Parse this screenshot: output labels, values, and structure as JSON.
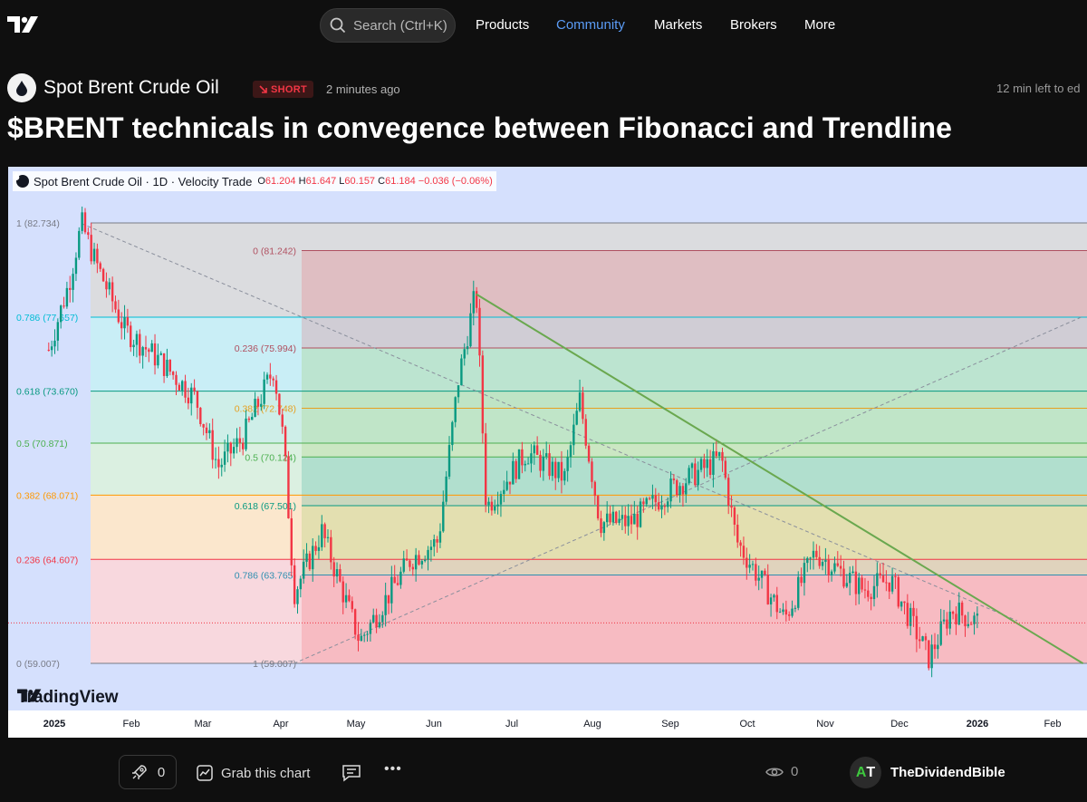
{
  "header": {
    "search_placeholder": "Search (Ctrl+K)",
    "nav": [
      "Products",
      "Community",
      "Markets",
      "Brokers",
      "More"
    ],
    "active_nav": "Community"
  },
  "idea": {
    "symbol_name": "Spot Brent Crude Oil",
    "direction": "SHORT",
    "posted": "2 minutes ago",
    "edit_notice": "12 min left to ed",
    "title": "$BRENT technicals in convegence between Fibonacci and Trendline"
  },
  "chart": {
    "legend_title": "Spot Brent Crude Oil · 1D · Velocity Trade",
    "ohlc": {
      "o_label": "O",
      "o": "61.204",
      "h_label": "H",
      "h": "61.647",
      "l_label": "L",
      "l": "60.157",
      "c_label": "C",
      "c": "61.184",
      "change": "−0.036 (−0.06%)"
    },
    "brand": "TradingView",
    "x_ticks": [
      "2025",
      "Feb",
      "Mar",
      "Apr",
      "May",
      "Jun",
      "Jul",
      "Aug",
      "Sep",
      "Oct",
      "Nov",
      "Dec",
      "2026",
      "Feb"
    ],
    "colors": {
      "up": "#089981",
      "down": "#f23645",
      "trendline": "#6aa84f",
      "fib_618": "#089981"
    }
  },
  "chart_data": {
    "type": "candlestick",
    "title": "Spot Brent Crude Oil · 1D · Velocity Trade",
    "x_range": [
      "2025-01",
      "2026-02"
    ],
    "y_range": [
      55.5,
      84.7
    ],
    "close_path": [
      [
        "2025-01-02",
        75.9
      ],
      [
        "2025-01-10",
        79.5
      ],
      [
        "2025-01-15",
        82.7
      ],
      [
        "2025-01-20",
        80.8
      ],
      [
        "2025-02-01",
        77.0
      ],
      [
        "2025-02-15",
        75.3
      ],
      [
        "2025-03-01",
        73.3
      ],
      [
        "2025-03-10",
        69.6
      ],
      [
        "2025-03-20",
        71.2
      ],
      [
        "2025-04-01",
        74.9
      ],
      [
        "2025-04-05",
        70.8
      ],
      [
        "2025-04-09",
        62.8
      ],
      [
        "2025-04-20",
        66.1
      ],
      [
        "2025-05-05",
        60.2
      ],
      [
        "2025-05-25",
        64.6
      ],
      [
        "2025-06-05",
        65.6
      ],
      [
        "2025-06-13",
        74.3
      ],
      [
        "2025-06-20",
        79.1
      ],
      [
        "2025-06-24",
        67.4
      ],
      [
        "2025-07-10",
        70.4
      ],
      [
        "2025-07-25",
        69.0
      ],
      [
        "2025-07-31",
        73.2
      ],
      [
        "2025-08-08",
        66.6
      ],
      [
        "2025-08-20",
        66.6
      ],
      [
        "2025-09-05",
        68.4
      ],
      [
        "2025-09-25",
        70.1
      ],
      [
        "2025-10-01",
        65.6
      ],
      [
        "2025-10-20",
        61.4
      ],
      [
        "2025-11-01",
        65.0
      ],
      [
        "2025-11-20",
        63.0
      ],
      [
        "2025-12-01",
        63.5
      ],
      [
        "2025-12-16",
        59.3
      ],
      [
        "2025-12-25",
        61.9
      ],
      [
        "2026-01-05",
        61.2
      ]
    ],
    "last_price": 61.184,
    "fibonacci_left": {
      "levels": [
        {
          "ratio": "1",
          "price": 82.734
        },
        {
          "ratio": "0.786",
          "price": 77.657
        },
        {
          "ratio": "0.618",
          "price": 73.67
        },
        {
          "ratio": "0.5",
          "price": 70.871
        },
        {
          "ratio": "0.382",
          "price": 68.071
        },
        {
          "ratio": "0.236",
          "price": 64.607
        },
        {
          "ratio": "0",
          "price": 59.007
        }
      ]
    },
    "fibonacci_right": {
      "levels": [
        {
          "ratio": "0",
          "price": 81.242
        },
        {
          "ratio": "0.236",
          "price": 75.994
        },
        {
          "ratio": "0.382",
          "price": 72.748
        },
        {
          "ratio": "0.5",
          "price": 70.124
        },
        {
          "ratio": "0.618",
          "price": 67.501
        },
        {
          "ratio": "0.786",
          "price": 63.765
        },
        {
          "ratio": "1",
          "price": 59.007
        }
      ]
    },
    "trendline": {
      "from": [
        "2025-06-20",
        78.9
      ],
      "to": [
        "2026-02-15",
        59.0
      ]
    },
    "diagonals": [
      {
        "from": [
          "2025-01-15",
          82.7
        ],
        "to": [
          "2026-01-20",
          61.3
        ]
      },
      {
        "from": [
          "2025-04-09",
          59.0
        ],
        "to": [
          "2026-02-15",
          77.7
        ]
      }
    ]
  },
  "footer": {
    "boost_count": "0",
    "grab_label": "Grab this chart",
    "more_label": "•••",
    "views": "0",
    "avatar_initial_1": "A",
    "avatar_initial_2": "T",
    "author": "TheDividendBible"
  }
}
